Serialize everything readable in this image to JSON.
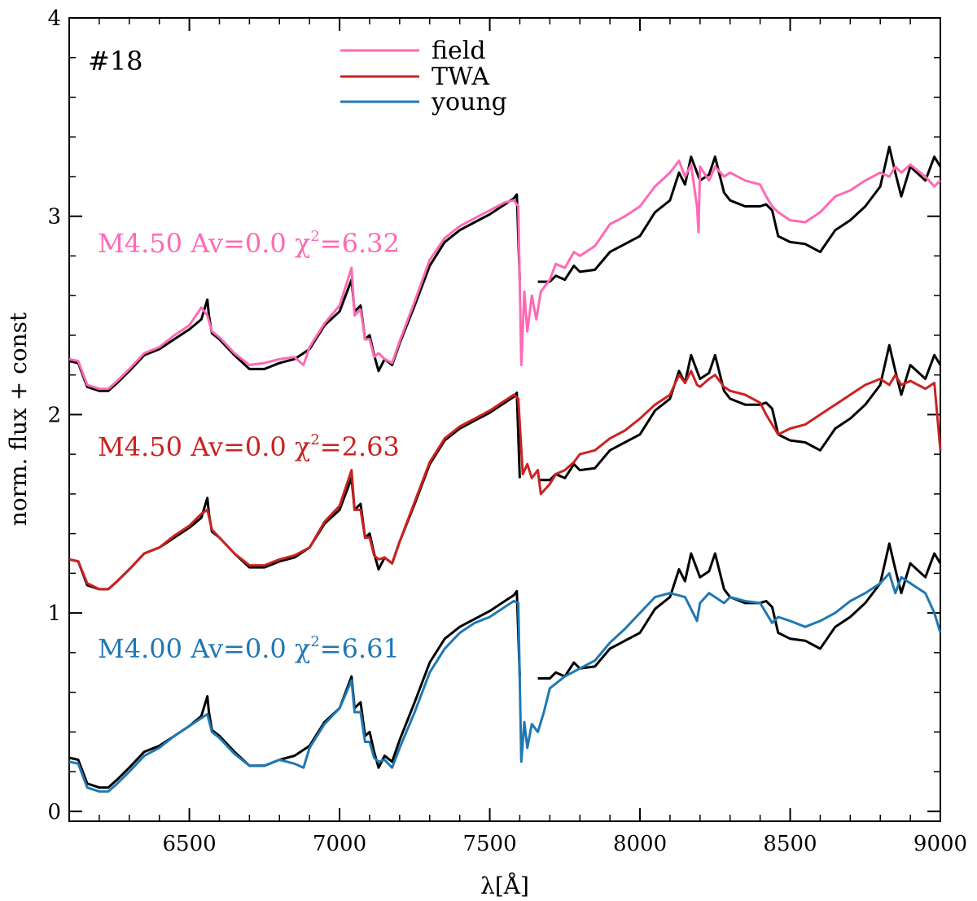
{
  "chart_data": {
    "type": "line",
    "panel_label": "#18",
    "xlabel": "λ[Å]",
    "ylabel": "norm. flux + const",
    "xlim": [
      6100,
      9000
    ],
    "ylim": [
      -0.05,
      4.0
    ],
    "x_ticks": [
      6500,
      7000,
      7500,
      8000,
      8500,
      9000
    ],
    "y_ticks": [
      0,
      1,
      2,
      3,
      4
    ],
    "grid": false,
    "legend": {
      "placement": "top-center",
      "entries": [
        {
          "label": "field",
          "color": "#ff69b4"
        },
        {
          "label": "TWA",
          "color": "#cc2222"
        },
        {
          "label": "young",
          "color": "#1f78b4"
        }
      ]
    },
    "fit_labels": [
      {
        "spt": "M4.50",
        "av": "Av=0.0",
        "chi_symbol": "χ",
        "chi_exp": "2",
        "chi_value": "=6.32",
        "color": "#ff69b4"
      },
      {
        "spt": "M4.50",
        "av": "Av=0.0",
        "chi_symbol": "χ",
        "chi_exp": "2",
        "chi_value": "=2.63",
        "color": "#cc2222"
      },
      {
        "spt": "M4.00",
        "av": "Av=0.0",
        "chi_symbol": "χ",
        "chi_exp": "2",
        "chi_value": "=6.61",
        "color": "#1f78b4"
      }
    ],
    "observed_base": {
      "x": [
        6100,
        6130,
        6160,
        6200,
        6230,
        6260,
        6300,
        6350,
        6400,
        6450,
        6500,
        6540,
        6560,
        6565,
        6575,
        6600,
        6650,
        6700,
        6750,
        6800,
        6850,
        6900,
        6950,
        7000,
        7040,
        7050,
        7070,
        7085,
        7100,
        7115,
        7130,
        7150,
        7175,
        7200,
        7250,
        7300,
        7350,
        7400,
        7450,
        7500,
        7550,
        7580,
        7590,
        7600
      ],
      "y": [
        0.27,
        0.26,
        0.14,
        0.12,
        0.12,
        0.16,
        0.22,
        0.3,
        0.33,
        0.38,
        0.43,
        0.48,
        0.58,
        0.5,
        0.41,
        0.38,
        0.3,
        0.23,
        0.23,
        0.26,
        0.28,
        0.33,
        0.45,
        0.52,
        0.68,
        0.52,
        0.55,
        0.38,
        0.4,
        0.3,
        0.22,
        0.28,
        0.25,
        0.36,
        0.55,
        0.75,
        0.87,
        0.93,
        0.97,
        1.01,
        1.06,
        1.09,
        1.11,
        0.68
      ],
      "x2": [
        7660,
        7700,
        7720,
        7750,
        7780,
        7800,
        7850,
        7900,
        7950,
        8000,
        8050,
        8100,
        8130,
        8150,
        8170,
        8200,
        8230,
        8250,
        8280,
        8300,
        8350,
        8400,
        8420,
        8440,
        8460,
        8500,
        8550,
        8600,
        8650,
        8700,
        8750,
        8800,
        8830,
        8850,
        8870,
        8900,
        8950,
        8980,
        9000
      ],
      "y2": [
        0.67,
        0.67,
        0.7,
        0.68,
        0.75,
        0.72,
        0.73,
        0.82,
        0.86,
        0.9,
        1.02,
        1.08,
        1.22,
        1.16,
        1.3,
        1.18,
        1.21,
        1.3,
        1.12,
        1.08,
        1.05,
        1.05,
        1.06,
        1.03,
        0.9,
        0.87,
        0.86,
        0.82,
        0.93,
        0.98,
        1.05,
        1.15,
        1.35,
        1.22,
        1.1,
        1.25,
        1.18,
        1.3,
        1.25
      ]
    },
    "series": [
      {
        "name": "field",
        "color": "#ff69b4",
        "offset": 2.0,
        "x": [
          6100,
          6130,
          6160,
          6200,
          6230,
          6260,
          6300,
          6350,
          6400,
          6450,
          6500,
          6540,
          6560,
          6575,
          6600,
          6650,
          6700,
          6750,
          6800,
          6850,
          6880,
          6900,
          6950,
          7000,
          7040,
          7050,
          7070,
          7085,
          7100,
          7115,
          7130,
          7150,
          7175,
          7200,
          7250,
          7300,
          7350,
          7400,
          7450,
          7500,
          7550,
          7580,
          7595,
          7605,
          7615,
          7625,
          7640,
          7655,
          7670,
          7700,
          7720,
          7750,
          7780,
          7800,
          7850,
          7900,
          7950,
          8000,
          8050,
          8100,
          8130,
          8150,
          8170,
          8190,
          8195,
          8200,
          8230,
          8250,
          8280,
          8300,
          8350,
          8400,
          8420,
          8440,
          8460,
          8500,
          8550,
          8600,
          8650,
          8700,
          8750,
          8800,
          8830,
          8850,
          8870,
          8900,
          8950,
          8980,
          9000
        ],
        "y": [
          0.28,
          0.27,
          0.15,
          0.13,
          0.13,
          0.17,
          0.23,
          0.31,
          0.34,
          0.4,
          0.45,
          0.54,
          0.5,
          0.42,
          0.39,
          0.31,
          0.25,
          0.26,
          0.28,
          0.29,
          0.25,
          0.34,
          0.46,
          0.55,
          0.74,
          0.5,
          0.53,
          0.38,
          0.38,
          0.29,
          0.31,
          0.28,
          0.26,
          0.37,
          0.57,
          0.78,
          0.89,
          0.95,
          0.99,
          1.03,
          1.07,
          1.08,
          1.05,
          0.25,
          0.62,
          0.42,
          0.6,
          0.48,
          0.62,
          0.68,
          0.76,
          0.74,
          0.82,
          0.8,
          0.85,
          0.96,
          1.0,
          1.05,
          1.15,
          1.22,
          1.28,
          1.2,
          1.26,
          1.05,
          0.92,
          1.25,
          1.18,
          1.25,
          1.2,
          1.22,
          1.18,
          1.16,
          1.1,
          1.05,
          1.02,
          0.98,
          0.97,
          1.02,
          1.1,
          1.13,
          1.18,
          1.22,
          1.2,
          1.25,
          1.22,
          1.26,
          1.2,
          1.15,
          1.18
        ]
      },
      {
        "name": "TWA",
        "color": "#cc2222",
        "offset": 1.0,
        "x": [
          6100,
          6130,
          6160,
          6200,
          6230,
          6260,
          6300,
          6350,
          6400,
          6450,
          6500,
          6540,
          6560,
          6575,
          6600,
          6650,
          6700,
          6750,
          6800,
          6850,
          6900,
          6950,
          7000,
          7040,
          7050,
          7070,
          7085,
          7100,
          7115,
          7130,
          7150,
          7175,
          7200,
          7250,
          7300,
          7350,
          7400,
          7450,
          7500,
          7550,
          7580,
          7595,
          7610,
          7625,
          7640,
          7660,
          7670,
          7700,
          7720,
          7750,
          7780,
          7800,
          7850,
          7900,
          7950,
          8000,
          8050,
          8100,
          8130,
          8150,
          8170,
          8190,
          8200,
          8230,
          8250,
          8280,
          8300,
          8350,
          8400,
          8420,
          8440,
          8460,
          8500,
          8550,
          8600,
          8650,
          8700,
          8750,
          8800,
          8830,
          8850,
          8870,
          8900,
          8950,
          8980,
          9000
        ],
        "y": [
          0.27,
          0.26,
          0.15,
          0.12,
          0.12,
          0.16,
          0.22,
          0.3,
          0.33,
          0.39,
          0.44,
          0.5,
          0.52,
          0.42,
          0.38,
          0.3,
          0.24,
          0.24,
          0.27,
          0.29,
          0.33,
          0.46,
          0.54,
          0.72,
          0.52,
          0.52,
          0.38,
          0.38,
          0.29,
          0.27,
          0.28,
          0.25,
          0.36,
          0.56,
          0.76,
          0.88,
          0.94,
          0.98,
          1.02,
          1.07,
          1.1,
          1.08,
          0.7,
          0.75,
          0.68,
          0.72,
          0.6,
          0.65,
          0.7,
          0.72,
          0.76,
          0.8,
          0.82,
          0.88,
          0.92,
          0.98,
          1.05,
          1.1,
          1.2,
          1.16,
          1.22,
          1.15,
          1.14,
          1.18,
          1.2,
          1.14,
          1.12,
          1.1,
          1.06,
          1.0,
          0.95,
          0.9,
          0.93,
          0.95,
          1.0,
          1.05,
          1.1,
          1.15,
          1.18,
          1.15,
          1.2,
          1.15,
          1.17,
          1.13,
          1.16,
          0.82
        ]
      },
      {
        "name": "young",
        "color": "#1f78b4",
        "offset": 0.0,
        "x": [
          6100,
          6130,
          6160,
          6200,
          6230,
          6260,
          6300,
          6350,
          6400,
          6450,
          6500,
          6540,
          6560,
          6575,
          6600,
          6650,
          6700,
          6750,
          6800,
          6850,
          6880,
          6900,
          6950,
          7000,
          7040,
          7050,
          7070,
          7085,
          7100,
          7115,
          7130,
          7150,
          7175,
          7200,
          7250,
          7300,
          7350,
          7400,
          7450,
          7500,
          7550,
          7580,
          7595,
          7605,
          7615,
          7625,
          7640,
          7660,
          7680,
          7700,
          7750,
          7800,
          7850,
          7900,
          7950,
          8000,
          8050,
          8100,
          8150,
          8170,
          8190,
          8200,
          8230,
          8250,
          8280,
          8300,
          8350,
          8400,
          8420,
          8440,
          8460,
          8500,
          8550,
          8600,
          8650,
          8700,
          8750,
          8800,
          8830,
          8850,
          8870,
          8900,
          8950,
          8980,
          9000
        ],
        "y": [
          0.25,
          0.24,
          0.12,
          0.1,
          0.1,
          0.14,
          0.2,
          0.28,
          0.32,
          0.38,
          0.43,
          0.47,
          0.49,
          0.4,
          0.37,
          0.29,
          0.23,
          0.23,
          0.26,
          0.24,
          0.22,
          0.32,
          0.44,
          0.52,
          0.66,
          0.5,
          0.5,
          0.35,
          0.35,
          0.27,
          0.25,
          0.26,
          0.22,
          0.32,
          0.5,
          0.7,
          0.82,
          0.9,
          0.95,
          0.98,
          1.03,
          1.06,
          1.05,
          0.25,
          0.45,
          0.32,
          0.44,
          0.4,
          0.5,
          0.62,
          0.68,
          0.72,
          0.76,
          0.85,
          0.92,
          1.0,
          1.08,
          1.1,
          1.08,
          1.02,
          0.96,
          1.05,
          1.1,
          1.08,
          1.05,
          1.08,
          1.06,
          1.05,
          1.0,
          0.95,
          0.98,
          0.96,
          0.93,
          0.96,
          1.0,
          1.06,
          1.1,
          1.15,
          1.2,
          1.1,
          1.18,
          1.15,
          1.1,
          1.0,
          0.9
        ]
      }
    ]
  }
}
